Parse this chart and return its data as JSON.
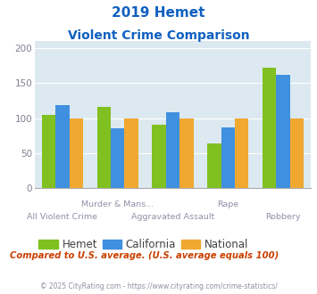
{
  "title_line1": "2019 Hemet",
  "title_line2": "Violent Crime Comparison",
  "hemet": [
    105,
    116,
    91,
    64,
    172
  ],
  "california": [
    118,
    86,
    108,
    87,
    162
  ],
  "national": [
    100,
    100,
    100,
    100,
    100
  ],
  "hemet_color": "#80c020",
  "california_color": "#4090e0",
  "national_color": "#f0a830",
  "bg_color": "#dce9f0",
  "ylim": [
    0,
    210
  ],
  "yticks": [
    0,
    50,
    100,
    150,
    200
  ],
  "title_color": "#1060c0",
  "footer_text": "Compared to U.S. average. (U.S. average equals 100)",
  "copyright_text": "© 2025 CityRating.com - https://www.cityrating.com/crime-statistics/",
  "legend_labels": [
    "Hemet",
    "California",
    "National"
  ],
  "upper_labels": [
    [
      "Murder & Mans...",
      1.5
    ],
    [
      "Rape",
      3.5
    ]
  ],
  "lower_labels": [
    [
      "All Violent Crime",
      0.5
    ],
    [
      "Aggravated Assault",
      2.5
    ],
    [
      "Robbery",
      4.5
    ]
  ],
  "bar_width": 0.25,
  "group_positions": [
    0.5,
    1.5,
    2.5,
    3.5,
    4.5
  ]
}
